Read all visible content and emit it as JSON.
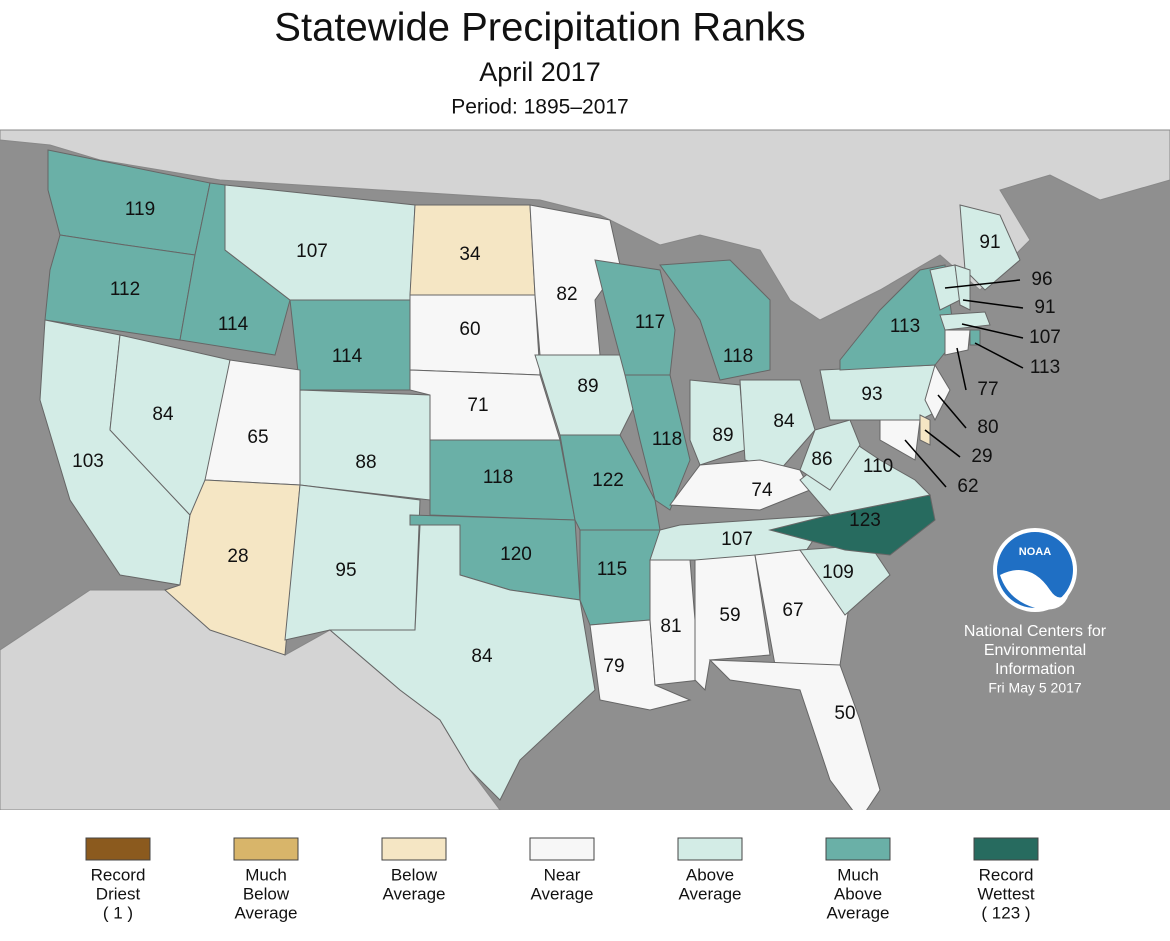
{
  "title": "Statewide Precipitation Ranks",
  "subtitle": "April 2017",
  "period": "Period: 1895–2017",
  "states": [
    {
      "value": 119,
      "color": "#6ab0a7"
    },
    {
      "value": 112,
      "color": "#6ab0a7"
    },
    {
      "value": 103,
      "color": "#d3ece6"
    },
    {
      "value": 84,
      "color": "#d3ece6"
    },
    {
      "value": 114,
      "color": "#6ab0a7"
    },
    {
      "value": 107,
      "color": "#d3ece6"
    },
    {
      "value": 114,
      "color": "#6ab0a7"
    },
    {
      "value": 65,
      "color": "#f7f7f7"
    },
    {
      "value": 28,
      "color": "#f5e6c4"
    },
    {
      "value": 88,
      "color": "#d3ece6"
    },
    {
      "value": 95,
      "color": "#d3ece6"
    },
    {
      "value": 34,
      "color": "#f5e6c4"
    },
    {
      "value": 60,
      "color": "#f7f7f7"
    },
    {
      "value": 71,
      "color": "#f7f7f7"
    },
    {
      "value": 118,
      "color": "#6ab0a7"
    },
    {
      "value": 120,
      "color": "#6ab0a7"
    },
    {
      "value": 84,
      "color": "#d3ece6"
    },
    {
      "value": 82,
      "color": "#f7f7f7"
    },
    {
      "value": 89,
      "color": "#d3ece6"
    },
    {
      "value": 122,
      "color": "#6ab0a7"
    },
    {
      "value": 115,
      "color": "#6ab0a7"
    },
    {
      "value": 79,
      "color": "#f7f7f7"
    },
    {
      "value": 117,
      "color": "#6ab0a7"
    },
    {
      "value": 118,
      "color": "#6ab0a7"
    },
    {
      "value": 118,
      "color": "#6ab0a7"
    },
    {
      "value": 89,
      "color": "#d3ece6"
    },
    {
      "value": 84,
      "color": "#d3ece6"
    },
    {
      "value": 74,
      "color": "#f7f7f7"
    },
    {
      "value": 107,
      "color": "#d3ece6"
    },
    {
      "value": 81,
      "color": "#f7f7f7"
    },
    {
      "value": 59,
      "color": "#f7f7f7"
    },
    {
      "value": 67,
      "color": "#f7f7f7"
    },
    {
      "value": 50,
      "color": "#f7f7f7"
    },
    {
      "value": 109,
      "color": "#d3ece6"
    },
    {
      "value": 123,
      "color": "#276b5f"
    },
    {
      "value": 110,
      "color": "#d3ece6"
    },
    {
      "value": 86,
      "color": "#d3ece6"
    },
    {
      "value": 93,
      "color": "#d3ece6"
    },
    {
      "value": 113,
      "color": "#6ab0a7"
    },
    {
      "value": 91,
      "color": "#d3ece6"
    },
    {
      "value": 96,
      "color": "#d3ece6"
    },
    {
      "value": 91,
      "color": "#d3ece6"
    },
    {
      "value": 107,
      "color": "#d3ece6"
    },
    {
      "value": 113,
      "color": "#6ab0a7"
    },
    {
      "value": 77,
      "color": "#f7f7f7"
    },
    {
      "value": 80,
      "color": "#f7f7f7"
    },
    {
      "value": 29,
      "color": "#f5e6c4"
    },
    {
      "value": 62,
      "color": "#f7f7f7"
    }
  ],
  "legend": [
    {
      "label": [
        "Record",
        "Driest",
        "( 1 )"
      ],
      "color": "#8b5a1e"
    },
    {
      "label": [
        "Much",
        "Below",
        "Average"
      ],
      "color": "#d8b56a"
    },
    {
      "label": [
        "Below",
        "Average"
      ],
      "color": "#f5e6c4"
    },
    {
      "label": [
        "Near",
        "Average"
      ],
      "color": "#f7f7f7"
    },
    {
      "label": [
        "Above",
        "Average"
      ],
      "color": "#d3ece6"
    },
    {
      "label": [
        "Much",
        "Above",
        "Average"
      ],
      "color": "#6ab0a7"
    },
    {
      "label": [
        "Record",
        "Wettest",
        "( 123 )"
      ],
      "color": "#276b5f"
    }
  ],
  "logo_text": "NOAA",
  "credit": [
    "National Centers for",
    "Environmental",
    "Information",
    "Fri May  5 2017"
  ]
}
